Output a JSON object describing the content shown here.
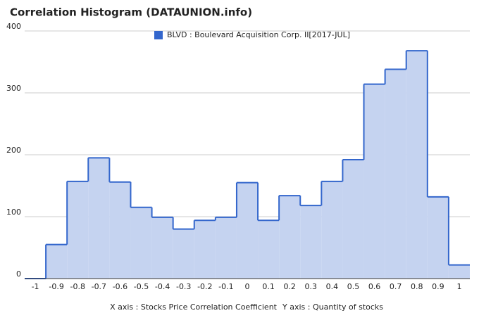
{
  "chart_data": {
    "type": "step-area",
    "title": "Correlation Histogram (DATAUNION.info)",
    "xlabel": "X axis : Stocks Price Correlation Coefficient",
    "ylabel": "Y axis : Quantity of stocks",
    "x": [
      -1,
      -0.9,
      -0.8,
      -0.7,
      -0.6,
      -0.5,
      -0.4,
      -0.3,
      -0.2,
      -0.1,
      0,
      0.1,
      0.2,
      0.3,
      0.4,
      0.5,
      0.6,
      0.7,
      0.8,
      0.9,
      1
    ],
    "series": [
      {
        "name": "BLVD : Boulevard Acquisition Corp. II[2017-JUL]",
        "color": "#3366cc",
        "fill": "#c5d3f0",
        "values": [
          0,
          55,
          157,
          195,
          156,
          115,
          99,
          80,
          94,
          99,
          155,
          94,
          134,
          118,
          157,
          192,
          314,
          338,
          368,
          132,
          22
        ]
      }
    ],
    "xlim": [
      -1.05,
      1.05
    ],
    "ylim": [
      0,
      400
    ],
    "yticks": [
      0,
      100,
      200,
      300,
      400
    ],
    "grid": true,
    "legend": "top"
  }
}
